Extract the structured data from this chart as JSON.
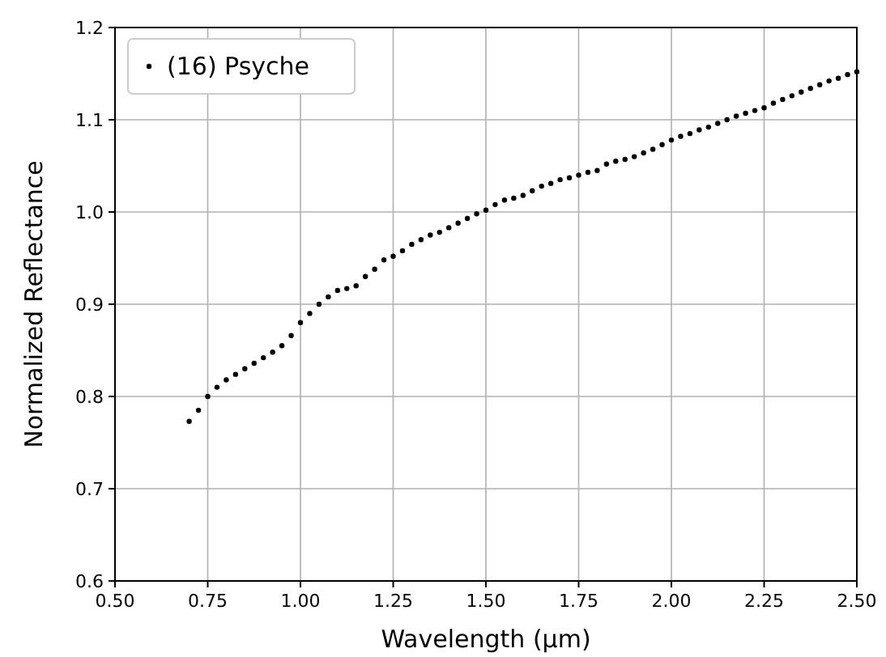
{
  "chart_data": {
    "type": "scatter",
    "xlabel": "Wavelength (μm)",
    "ylabel": "Normalized Reflectance",
    "xlim": [
      0.5,
      2.5
    ],
    "ylim": [
      0.6,
      1.2
    ],
    "xticks": [
      {
        "value": 0.5,
        "label": "0.50"
      },
      {
        "value": 0.75,
        "label": "0.75"
      },
      {
        "value": 1,
        "label": "1.00"
      },
      {
        "value": 1.25,
        "label": "1.25"
      },
      {
        "value": 1.5,
        "label": "1.50"
      },
      {
        "value": 1.75,
        "label": "1.75"
      },
      {
        "value": 2,
        "label": "2.00"
      },
      {
        "value": 2.25,
        "label": "2.25"
      },
      {
        "value": 2.5,
        "label": "2.50"
      }
    ],
    "yticks": [
      {
        "value": 0.6,
        "label": "0.6"
      },
      {
        "value": 0.7,
        "label": "0.7"
      },
      {
        "value": 0.8,
        "label": "0.8"
      },
      {
        "value": 0.9,
        "label": "0.9"
      },
      {
        "value": 1,
        "label": "1.0"
      },
      {
        "value": 1.1,
        "label": "1.1"
      },
      {
        "value": 1.2,
        "label": "1.2"
      }
    ],
    "grid": true,
    "legend": "top left",
    "marker": "circle",
    "series": [
      {
        "name": "(16) Psyche",
        "color": "#000000",
        "x": [
          0.7,
          0.725,
          0.75,
          0.775,
          0.8,
          0.825,
          0.85,
          0.875,
          0.9,
          0.925,
          0.95,
          0.975,
          1.0,
          1.025,
          1.05,
          1.075,
          1.1,
          1.125,
          1.15,
          1.175,
          1.2,
          1.225,
          1.25,
          1.275,
          1.3,
          1.325,
          1.35,
          1.375,
          1.4,
          1.425,
          1.45,
          1.475,
          1.5,
          1.525,
          1.55,
          1.575,
          1.6,
          1.625,
          1.65,
          1.675,
          1.7,
          1.725,
          1.75,
          1.775,
          1.8,
          1.825,
          1.85,
          1.875,
          1.9,
          1.925,
          1.95,
          1.975,
          2.0,
          2.025,
          2.05,
          2.075,
          2.1,
          2.125,
          2.15,
          2.175,
          2.2,
          2.225,
          2.25,
          2.275,
          2.3,
          2.325,
          2.35,
          2.375,
          2.4,
          2.425,
          2.45,
          2.475,
          2.5
        ],
        "values": [
          0.773,
          0.785,
          0.8,
          0.81,
          0.818,
          0.824,
          0.83,
          0.836,
          0.842,
          0.848,
          0.855,
          0.866,
          0.88,
          0.89,
          0.9,
          0.908,
          0.915,
          0.917,
          0.92,
          0.93,
          0.938,
          0.948,
          0.952,
          0.958,
          0.965,
          0.97,
          0.975,
          0.978,
          0.983,
          0.988,
          0.993,
          0.998,
          1.002,
          1.008,
          1.013,
          1.015,
          1.018,
          1.023,
          1.028,
          1.031,
          1.035,
          1.037,
          1.04,
          1.043,
          1.045,
          1.052,
          1.055,
          1.057,
          1.06,
          1.064,
          1.068,
          1.073,
          1.078,
          1.082,
          1.085,
          1.089,
          1.092,
          1.096,
          1.1,
          1.104,
          1.107,
          1.11,
          1.113,
          1.118,
          1.122,
          1.126,
          1.13,
          1.134,
          1.138,
          1.142,
          1.145,
          1.149,
          1.152
        ]
      }
    ]
  }
}
